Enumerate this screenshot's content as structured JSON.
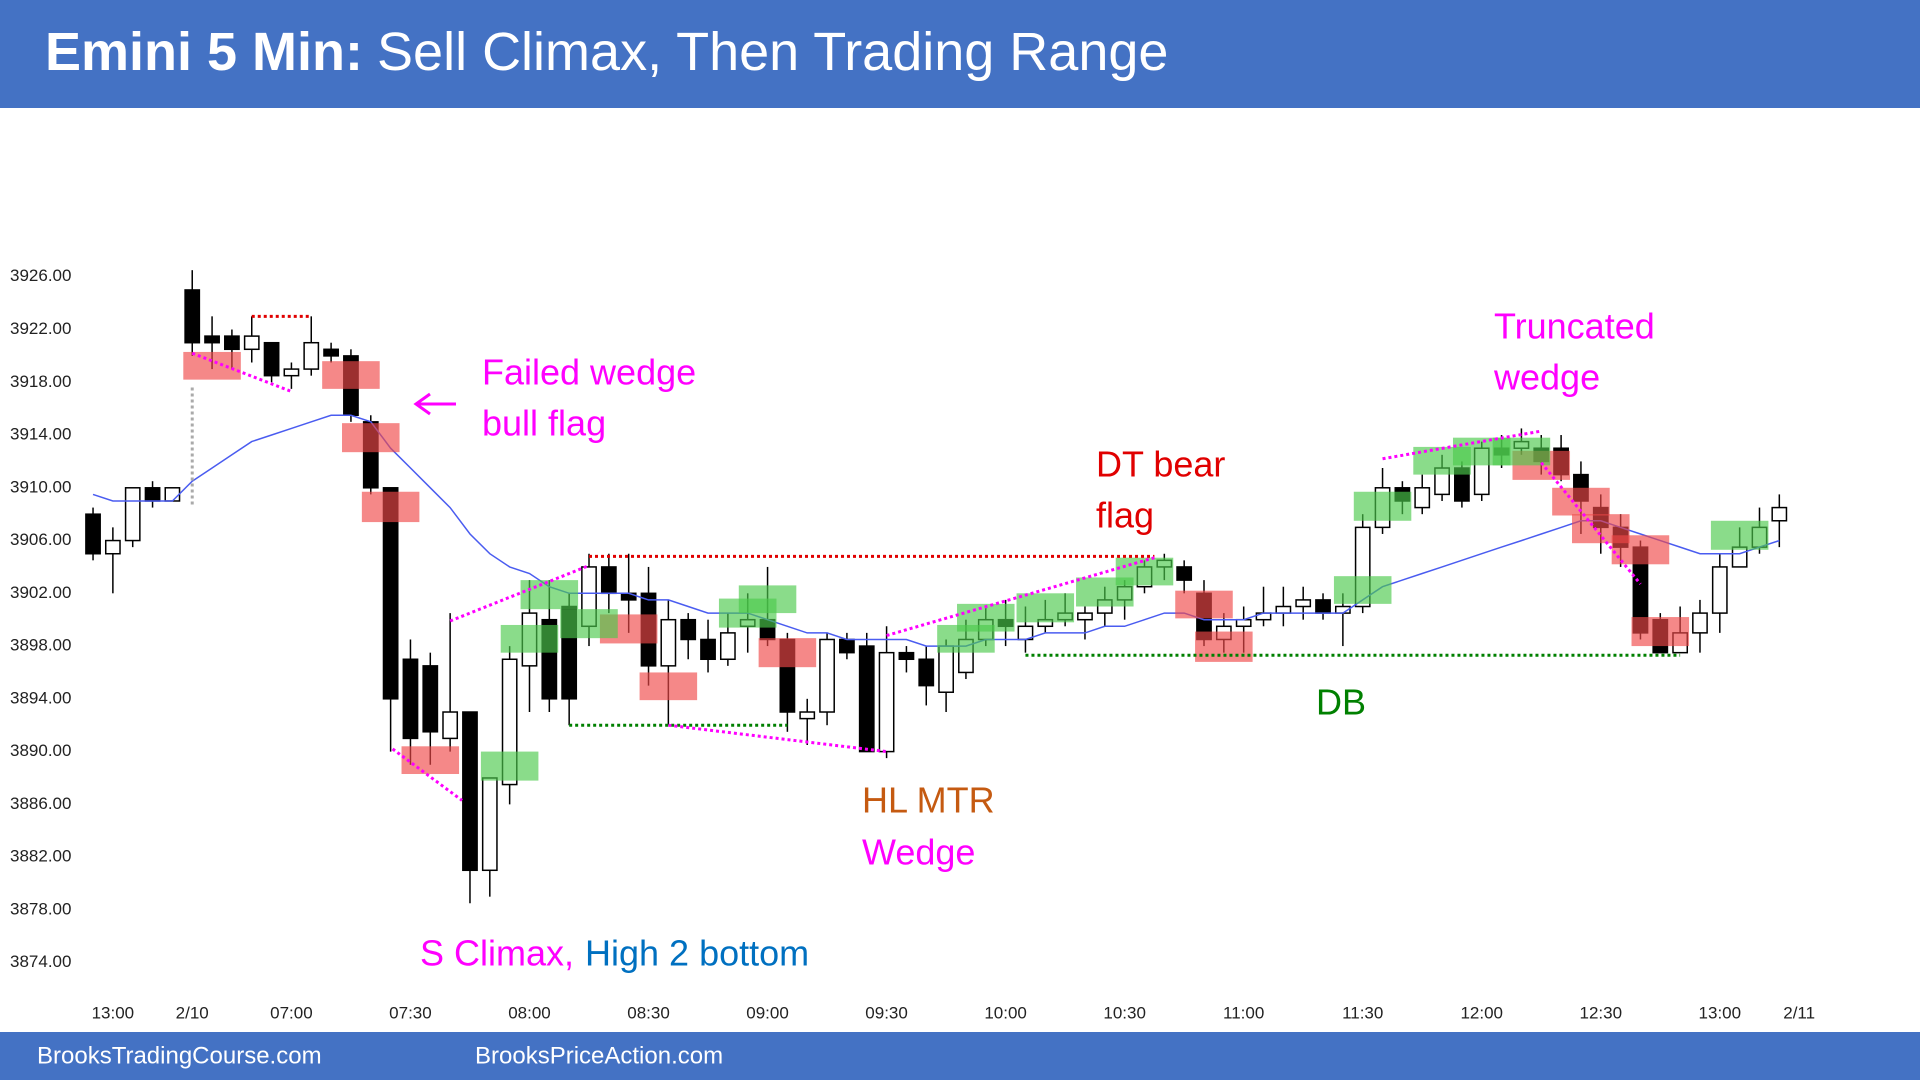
{
  "chart_data": {
    "type": "candlestick",
    "title_prefix": "Emini 5 Min:",
    "title": "Sell Climax, Then Trading Range",
    "open": [
      3908,
      3905,
      3906,
      3910,
      3909,
      3925,
      3921.5,
      3921.5,
      3920.5,
      3921,
      3918.5,
      3919,
      3920.5,
      3920,
      3915,
      3910,
      3897,
      3896.5,
      3891,
      3893,
      3881,
      3887.5,
      3896.5,
      3900,
      3901,
      3899.5,
      3904,
      3902,
      3902,
      3896.5,
      3900,
      3898.5,
      3897,
      3899.5,
      3900,
      3898.5,
      3892.5,
      3893,
      3898.5,
      3898,
      3890,
      3897.5,
      3897,
      3894.5,
      3896,
      3898.5,
      3900,
      3898.5,
      3899.5,
      3900,
      3900,
      3900.5,
      3901.5,
      3902.5,
      3904,
      3904,
      3902,
      3898.5,
      3899.5,
      3900,
      3900.5,
      3901,
      3901.5,
      3900.5,
      3901,
      3907,
      3910,
      3908.5,
      3909.5,
      3911.5,
      3909.5,
      3913,
      3913,
      3913,
      3913,
      3911,
      3908.5,
      3907,
      3905.5,
      3900,
      3897.5,
      3899,
      3900.5,
      3904,
      3905.5,
      3907.5
    ],
    "high": [
      3908.5,
      3907,
      3910,
      3910.5,
      3910,
      3926.5,
      3923,
      3922,
      3923,
      3921,
      3919.5,
      3923,
      3921,
      3920.5,
      3915.5,
      3910,
      3898.5,
      3897.5,
      3900.5,
      3893,
      3888,
      3898,
      3903,
      3903,
      3902,
      3905,
      3905,
      3905,
      3904,
      3901.5,
      3900.5,
      3900,
      3900.5,
      3902,
      3904,
      3899,
      3894,
      3899,
      3899,
      3899,
      3899.5,
      3898,
      3898,
      3898.5,
      3900,
      3901,
      3901.5,
      3901,
      3901.5,
      3902,
      3901,
      3902.5,
      3903,
      3904.5,
      3905,
      3904.5,
      3903,
      3900.5,
      3901,
      3902.5,
      3902.5,
      3902.5,
      3902,
      3902,
      3908,
      3911.5,
      3910.5,
      3911,
      3912.5,
      3912,
      3913.5,
      3914,
      3914.5,
      3914,
      3914,
      3912,
      3909.5,
      3908,
      3906,
      3900.5,
      3901,
      3901.5,
      3905,
      3907,
      3908.5,
      3909.5
    ],
    "low": [
      3904.5,
      3902,
      3905.5,
      3908.5,
      3909,
      3920,
      3919,
      3919,
      3919.5,
      3918,
      3917.5,
      3918.5,
      3919.5,
      3915,
      3909.5,
      3890,
      3889,
      3889,
      3890,
      3878.5,
      3879,
      3886,
      3893,
      3893,
      3892,
      3898,
      3900.5,
      3899,
      3895,
      3892,
      3897,
      3896,
      3896.5,
      3897.5,
      3898,
      3891.5,
      3890.5,
      3892,
      3897,
      3890,
      3889.5,
      3896,
      3893.5,
      3893,
      3895.5,
      3898,
      3898,
      3897.5,
      3899,
      3899.5,
      3898.5,
      3899.5,
      3900,
      3902,
      3903,
      3902,
      3898,
      3897.5,
      3897.5,
      3899.5,
      3899.5,
      3900,
      3900,
      3898,
      3900.5,
      3906.5,
      3908,
      3908,
      3909,
      3908.5,
      3909,
      3911.5,
      3912.5,
      3911,
      3910.5,
      3906.5,
      3905,
      3904,
      3898.5,
      3897.5,
      3897.5,
      3897.5,
      3899,
      3904,
      3905,
      3905.5
    ],
    "close": [
      3905,
      3906,
      3910,
      3909,
      3910,
      3921,
      3921,
      3920.5,
      3921.5,
      3918.5,
      3919,
      3921,
      3920,
      3915.5,
      3910,
      3894,
      3891,
      3891.5,
      3893,
      3881,
      3888,
      3897,
      3900.5,
      3894,
      3894,
      3904,
      3902,
      3901.5,
      3896.5,
      3900,
      3898.5,
      3897,
      3899,
      3900,
      3898.5,
      3893,
      3893,
      3898.5,
      3897.5,
      3890,
      3897.5,
      3897,
      3895,
      3898,
      3898.5,
      3900,
      3899.5,
      3899.5,
      3900,
      3900.5,
      3900.5,
      3901.5,
      3902.5,
      3904,
      3904.5,
      3903,
      3898.5,
      3899.5,
      3900,
      3900.5,
      3901,
      3901.5,
      3900.5,
      3901,
      3907,
      3910,
      3909,
      3910,
      3911.5,
      3909,
      3913,
      3912.5,
      3913.5,
      3912,
      3911,
      3909,
      3907,
      3905.5,
      3899,
      3897.5,
      3899,
      3900.5,
      3904,
      3905.5,
      3907,
      3908.5
    ],
    "ema": {
      "color": "#4a5cf0",
      "values": [
        3909.5,
        3909,
        3909,
        3909,
        3909,
        3910.5,
        3911.5,
        3912.5,
        3913.5,
        3914,
        3914.5,
        3915,
        3915.5,
        3915.5,
        3915,
        3913,
        3911.5,
        3910,
        3908.5,
        3906.5,
        3905,
        3904,
        3903.5,
        3902.5,
        3902,
        3902,
        3902,
        3902,
        3901.5,
        3901.5,
        3901,
        3900.5,
        3900.5,
        3900.5,
        3900,
        3899.5,
        3899,
        3899,
        3898.5,
        3898.5,
        3898.5,
        3898.5,
        3898,
        3898,
        3898,
        3898.5,
        3898.5,
        3898.5,
        3899,
        3899,
        3899,
        3899.5,
        3899.5,
        3900,
        3900.5,
        3900.5,
        3900,
        3900,
        3900,
        3900.5,
        3900.5,
        3900.5,
        3900.5,
        3900.5,
        3901.5,
        3902.5,
        3903,
        3903.5,
        3904,
        3904.5,
        3905,
        3905.5,
        3906,
        3906.5,
        3907,
        3907.5,
        3907.5,
        3907,
        3906.5,
        3906,
        3905.5,
        3905,
        3905,
        3905,
        3905.5,
        3906
      ]
    },
    "ylim": [
      3872,
      3930
    ],
    "yticks": [
      {
        "value": 3874,
        "label": "3874.00"
      },
      {
        "value": 3878,
        "label": "3878.00"
      },
      {
        "value": 3882,
        "label": "3882.00"
      },
      {
        "value": 3886,
        "label": "3886.00"
      },
      {
        "value": 3890,
        "label": "3890.00"
      },
      {
        "value": 3894,
        "label": "3894.00"
      },
      {
        "value": 3898,
        "label": "3898.00"
      },
      {
        "value": 3902,
        "label": "3902.00"
      },
      {
        "value": 3906,
        "label": "3906.00"
      },
      {
        "value": 3910,
        "label": "3910.00"
      },
      {
        "value": 3914,
        "label": "3914.00"
      },
      {
        "value": 3918,
        "label": "3918.00"
      },
      {
        "value": 3922,
        "label": "3922.00"
      },
      {
        "value": 3926,
        "label": "3926.00"
      }
    ],
    "xlim": [
      -1,
      87
    ],
    "xticks": [
      {
        "value": 1,
        "label": "13:00"
      },
      {
        "value": 5,
        "label": "2/10"
      },
      {
        "value": 10,
        "label": "07:00"
      },
      {
        "value": 16,
        "label": "07:30"
      },
      {
        "value": 22,
        "label": "08:00"
      },
      {
        "value": 28,
        "label": "08:30"
      },
      {
        "value": 34,
        "label": "09:00"
      },
      {
        "value": 40,
        "label": "09:30"
      },
      {
        "value": 46,
        "label": "10:00"
      },
      {
        "value": 52,
        "label": "10:30"
      },
      {
        "value": 58,
        "label": "11:00"
      },
      {
        "value": 64,
        "label": "11:30"
      },
      {
        "value": 70,
        "label": "12:00"
      },
      {
        "value": 76,
        "label": "12:30"
      },
      {
        "value": 82,
        "label": "13:00"
      },
      {
        "value": 86,
        "label": "2/11"
      }
    ],
    "boxes": [
      {
        "x": 6,
        "low": 3918.2,
        "high": 3920.3,
        "color": "#f04848"
      },
      {
        "x": 13,
        "low": 3917.5,
        "high": 3919.6,
        "color": "#f04848"
      },
      {
        "x": 14,
        "low": 3912.7,
        "high": 3914.9,
        "color": "#f04848"
      },
      {
        "x": 15,
        "low": 3907.4,
        "high": 3909.7,
        "color": "#f04848"
      },
      {
        "x": 17,
        "low": 3888.3,
        "high": 3890.4,
        "color": "#f04848"
      },
      {
        "x": 27,
        "low": 3898.2,
        "high": 3900.4,
        "color": "#f04848"
      },
      {
        "x": 29,
        "low": 3893.9,
        "high": 3896,
        "color": "#f04848"
      },
      {
        "x": 35,
        "low": 3896.4,
        "high": 3898.6,
        "color": "#f04848"
      },
      {
        "x": 56,
        "low": 3900.1,
        "high": 3902.2,
        "color": "#f04848"
      },
      {
        "x": 57,
        "low": 3896.8,
        "high": 3899.1,
        "color": "#f04848"
      },
      {
        "x": 73,
        "low": 3910.6,
        "high": 3912.8,
        "color": "#f04848"
      },
      {
        "x": 75,
        "low": 3907.9,
        "high": 3910,
        "color": "#f04848"
      },
      {
        "x": 76,
        "low": 3905.8,
        "high": 3908,
        "color": "#f04848"
      },
      {
        "x": 78,
        "low": 3904.2,
        "high": 3906.4,
        "color": "#f04848"
      },
      {
        "x": 79,
        "low": 3898,
        "high": 3900.2,
        "color": "#f04848"
      },
      {
        "x": 21,
        "low": 3887.8,
        "high": 3890,
        "color": "#4cc94c"
      },
      {
        "x": 22,
        "low": 3897.5,
        "high": 3899.6,
        "color": "#4cc94c"
      },
      {
        "x": 23,
        "low": 3900.8,
        "high": 3903,
        "color": "#4cc94c"
      },
      {
        "x": 25,
        "low": 3898.6,
        "high": 3900.8,
        "color": "#4cc94c"
      },
      {
        "x": 33,
        "low": 3899.4,
        "high": 3901.6,
        "color": "#4cc94c"
      },
      {
        "x": 34,
        "low": 3900.5,
        "high": 3902.6,
        "color": "#4cc94c"
      },
      {
        "x": 44,
        "low": 3897.5,
        "high": 3899.6,
        "color": "#4cc94c"
      },
      {
        "x": 45,
        "low": 3899.1,
        "high": 3901.2,
        "color": "#4cc94c"
      },
      {
        "x": 48,
        "low": 3899.8,
        "high": 3902,
        "color": "#4cc94c"
      },
      {
        "x": 51,
        "low": 3901,
        "high": 3903.2,
        "color": "#4cc94c"
      },
      {
        "x": 53,
        "low": 3902.6,
        "high": 3904.7,
        "color": "#4cc94c"
      },
      {
        "x": 64,
        "low": 3901.2,
        "high": 3903.3,
        "color": "#4cc94c"
      },
      {
        "x": 65,
        "low": 3907.5,
        "high": 3909.7,
        "color": "#4cc94c"
      },
      {
        "x": 68,
        "low": 3911,
        "high": 3913.1,
        "color": "#4cc94c"
      },
      {
        "x": 70,
        "low": 3911.7,
        "high": 3913.8,
        "color": "#4cc94c"
      },
      {
        "x": 72,
        "low": 3911.7,
        "high": 3913.8,
        "color": "#4cc94c"
      },
      {
        "x": 83,
        "low": 3905.3,
        "high": 3907.5,
        "color": "#4cc94c"
      }
    ],
    "lines": [
      {
        "from": [
          8,
          3923
        ],
        "to": [
          11,
          3923
        ],
        "color": "#e00000"
      },
      {
        "from": [
          5,
          3920.2
        ],
        "to": [
          10,
          3917.3
        ],
        "color": "#ff00ff"
      },
      {
        "from": [
          5,
          3917.6
        ],
        "to": [
          5,
          3908.7
        ],
        "color": "#aaaaaa"
      },
      {
        "from": [
          15.1,
          3890.2
        ],
        "to": [
          18.6,
          3886.3
        ],
        "color": "#ff00ff"
      },
      {
        "from": [
          18,
          3899.9
        ],
        "to": [
          25,
          3904.1
        ],
        "color": "#ff00ff"
      },
      {
        "from": [
          25,
          3904.8
        ],
        "to": [
          53.5,
          3904.8
        ],
        "color": "#e00000"
      },
      {
        "from": [
          24,
          3892
        ],
        "to": [
          35,
          3892
        ],
        "color": "#008000"
      },
      {
        "from": [
          29,
          3892
        ],
        "to": [
          40,
          3890
        ],
        "color": "#ff00ff"
      },
      {
        "from": [
          40,
          3898.8
        ],
        "to": [
          53.5,
          3904.7
        ],
        "color": "#ff00ff"
      },
      {
        "from": [
          47,
          3897.3
        ],
        "to": [
          80,
          3897.3
        ],
        "color": "#008000"
      },
      {
        "from": [
          65,
          3912.2
        ],
        "to": [
          73,
          3914.3
        ],
        "color": "#ff00ff"
      },
      {
        "from": [
          73,
          3911.9
        ],
        "to": [
          78,
          3902.7
        ],
        "color": "#ff00ff"
      }
    ],
    "annotations": [
      {
        "lines": [
          "Failed wedge",
          "bull flag"
        ],
        "color": "#ff00ff"
      },
      {
        "lines": [
          "DT bear",
          "flag"
        ],
        "color": "#e00000"
      },
      {
        "lines": [
          "Truncated",
          "wedge"
        ],
        "color": "#ff00ff"
      },
      {
        "lines": [
          "DB"
        ],
        "color": "#008000"
      },
      {
        "lines": [
          "HL MTR"
        ],
        "color": "#c55a11"
      },
      {
        "lines": [
          "Wedge"
        ],
        "color": "#ff00ff"
      },
      {
        "lines": [
          "S Climax,"
        ],
        "color": "#ff00ff"
      },
      {
        "lines": [
          "High 2 bottom"
        ],
        "color": "#0070c0"
      }
    ]
  },
  "footer": [
    "BrooksTradingCourse.com",
    "BrooksPriceAction.com"
  ]
}
